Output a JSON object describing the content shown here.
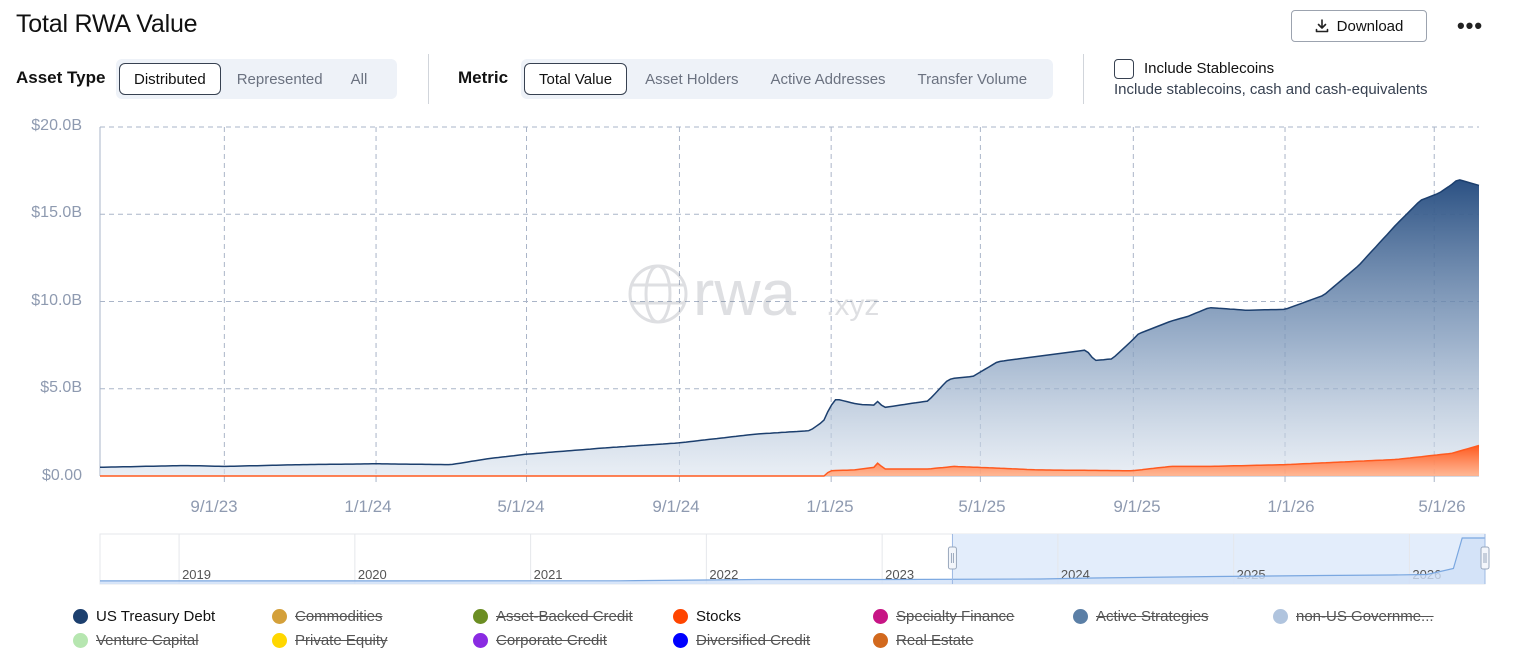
{
  "header": {
    "title": "Total RWA Value",
    "download_label": "Download",
    "more_label": "•••"
  },
  "filters": {
    "asset_type": {
      "label": "Asset Type",
      "options": [
        "Distributed",
        "Represented",
        "All"
      ],
      "selected": "Distributed"
    },
    "metric": {
      "label": "Metric",
      "options": [
        "Total Value",
        "Asset Holders",
        "Active Addresses",
        "Transfer Volume"
      ],
      "selected": "Total Value"
    },
    "stablecoins": {
      "label": "Include Stablecoins",
      "description": "Include stablecoins, cash and cash-equivalents",
      "checked": false
    }
  },
  "watermark": {
    "main": "rwa",
    "suffix": ".xyz"
  },
  "chart_data": {
    "type": "area",
    "stacked": true,
    "y_ticks": [
      "$20.0B",
      "$15.0B",
      "$10.0B",
      "$5.0B",
      "$0.00"
    ],
    "ylim": [
      0,
      20
    ],
    "yunit": "B USD",
    "x_ticks": [
      "9/1/23",
      "1/1/24",
      "5/1/24",
      "9/1/24",
      "1/1/25",
      "5/1/25",
      "9/1/25",
      "1/1/26",
      "5/1/26"
    ],
    "xlim": [
      "2023-05-24",
      "2026-06-06"
    ],
    "grid": true,
    "series": [
      {
        "name": "Stocks",
        "color": "#ff5a1f",
        "points": [
          [
            "2023-05-24",
            0.0
          ],
          [
            "2024-12-28",
            0.0
          ],
          [
            "2024-12-30",
            0.3
          ],
          [
            "2025-01-20",
            0.35
          ],
          [
            "2025-02-05",
            0.5
          ],
          [
            "2025-02-08",
            0.8
          ],
          [
            "2025-02-12",
            0.4
          ],
          [
            "2025-03-20",
            0.4
          ],
          [
            "2025-04-10",
            0.55
          ],
          [
            "2025-05-15",
            0.45
          ],
          [
            "2025-06-15",
            0.35
          ],
          [
            "2025-08-31",
            0.3
          ],
          [
            "2025-10-01",
            0.55
          ],
          [
            "2025-11-01",
            0.55
          ],
          [
            "2026-01-01",
            0.65
          ],
          [
            "2026-02-15",
            0.8
          ],
          [
            "2026-04-01",
            0.95
          ],
          [
            "2026-05-15",
            1.3
          ],
          [
            "2026-06-06",
            1.75
          ]
        ]
      },
      {
        "name": "US Treasury Debt",
        "color": "#1c3f6e",
        "points": [
          [
            "2023-05-24",
            0.5
          ],
          [
            "2023-08-01",
            0.6
          ],
          [
            "2023-09-01",
            0.55
          ],
          [
            "2023-11-01",
            0.65
          ],
          [
            "2024-01-01",
            0.7
          ],
          [
            "2024-03-01",
            0.65
          ],
          [
            "2024-04-01",
            1.0
          ],
          [
            "2024-05-01",
            1.25
          ],
          [
            "2024-07-01",
            1.6
          ],
          [
            "2024-09-01",
            1.9
          ],
          [
            "2024-11-01",
            2.4
          ],
          [
            "2024-12-15",
            2.6
          ],
          [
            "2024-12-25",
            3.1
          ],
          [
            "2025-01-05",
            4.1
          ],
          [
            "2025-01-25",
            3.7
          ],
          [
            "2025-02-10",
            3.5
          ],
          [
            "2025-03-20",
            3.9
          ],
          [
            "2025-04-05",
            5.0
          ],
          [
            "2025-04-25",
            5.2
          ],
          [
            "2025-05-15",
            6.1
          ],
          [
            "2025-06-15",
            6.5
          ],
          [
            "2025-07-25",
            6.9
          ],
          [
            "2025-08-01",
            6.3
          ],
          [
            "2025-08-15",
            6.4
          ],
          [
            "2025-09-05",
            7.8
          ],
          [
            "2025-10-15",
            8.6
          ],
          [
            "2025-11-01",
            9.1
          ],
          [
            "2025-12-01",
            8.9
          ],
          [
            "2026-01-01",
            8.9
          ],
          [
            "2026-02-01",
            9.6
          ],
          [
            "2026-03-01",
            11.2
          ],
          [
            "2026-04-01",
            13.5
          ],
          [
            "2026-04-20",
            14.7
          ],
          [
            "2026-05-05",
            15.0
          ],
          [
            "2026-05-20",
            15.6
          ],
          [
            "2026-06-06",
            14.9
          ]
        ]
      }
    ],
    "legend": {
      "placement": "bottom",
      "items": [
        {
          "label": "US Treasury Debt",
          "color": "#1c3f6e",
          "active": true
        },
        {
          "label": "Commodities",
          "color": "#d4a03a",
          "active": false
        },
        {
          "label": "Asset-Backed Credit",
          "color": "#6b8e23",
          "active": false
        },
        {
          "label": "Stocks",
          "color": "#ff4500",
          "active": true
        },
        {
          "label": "Specialty Finance",
          "color": "#c71585",
          "active": false
        },
        {
          "label": "Active Strategies",
          "color": "#5b7fa6",
          "active": false
        },
        {
          "label": "non-US Governme...",
          "color": "#b0c4de",
          "active": false
        },
        {
          "label": "Venture Capital",
          "color": "#b6e6b0",
          "active": false
        },
        {
          "label": "Private Equity",
          "color": "#ffd700",
          "active": false
        },
        {
          "label": "Corporate Credit",
          "color": "#8a2be2",
          "active": false
        },
        {
          "label": "Diversified Credit",
          "color": "#0000ff",
          "active": false
        },
        {
          "label": "Real Estate",
          "color": "#d2691e",
          "active": false
        }
      ]
    }
  },
  "navigator": {
    "year_labels": [
      "2019",
      "2020",
      "2021",
      "2022",
      "2023",
      "2024",
      "2025",
      "2026"
    ],
    "range_start_year_fraction": 2023.4,
    "range_end_year_fraction": 2026.43
  }
}
